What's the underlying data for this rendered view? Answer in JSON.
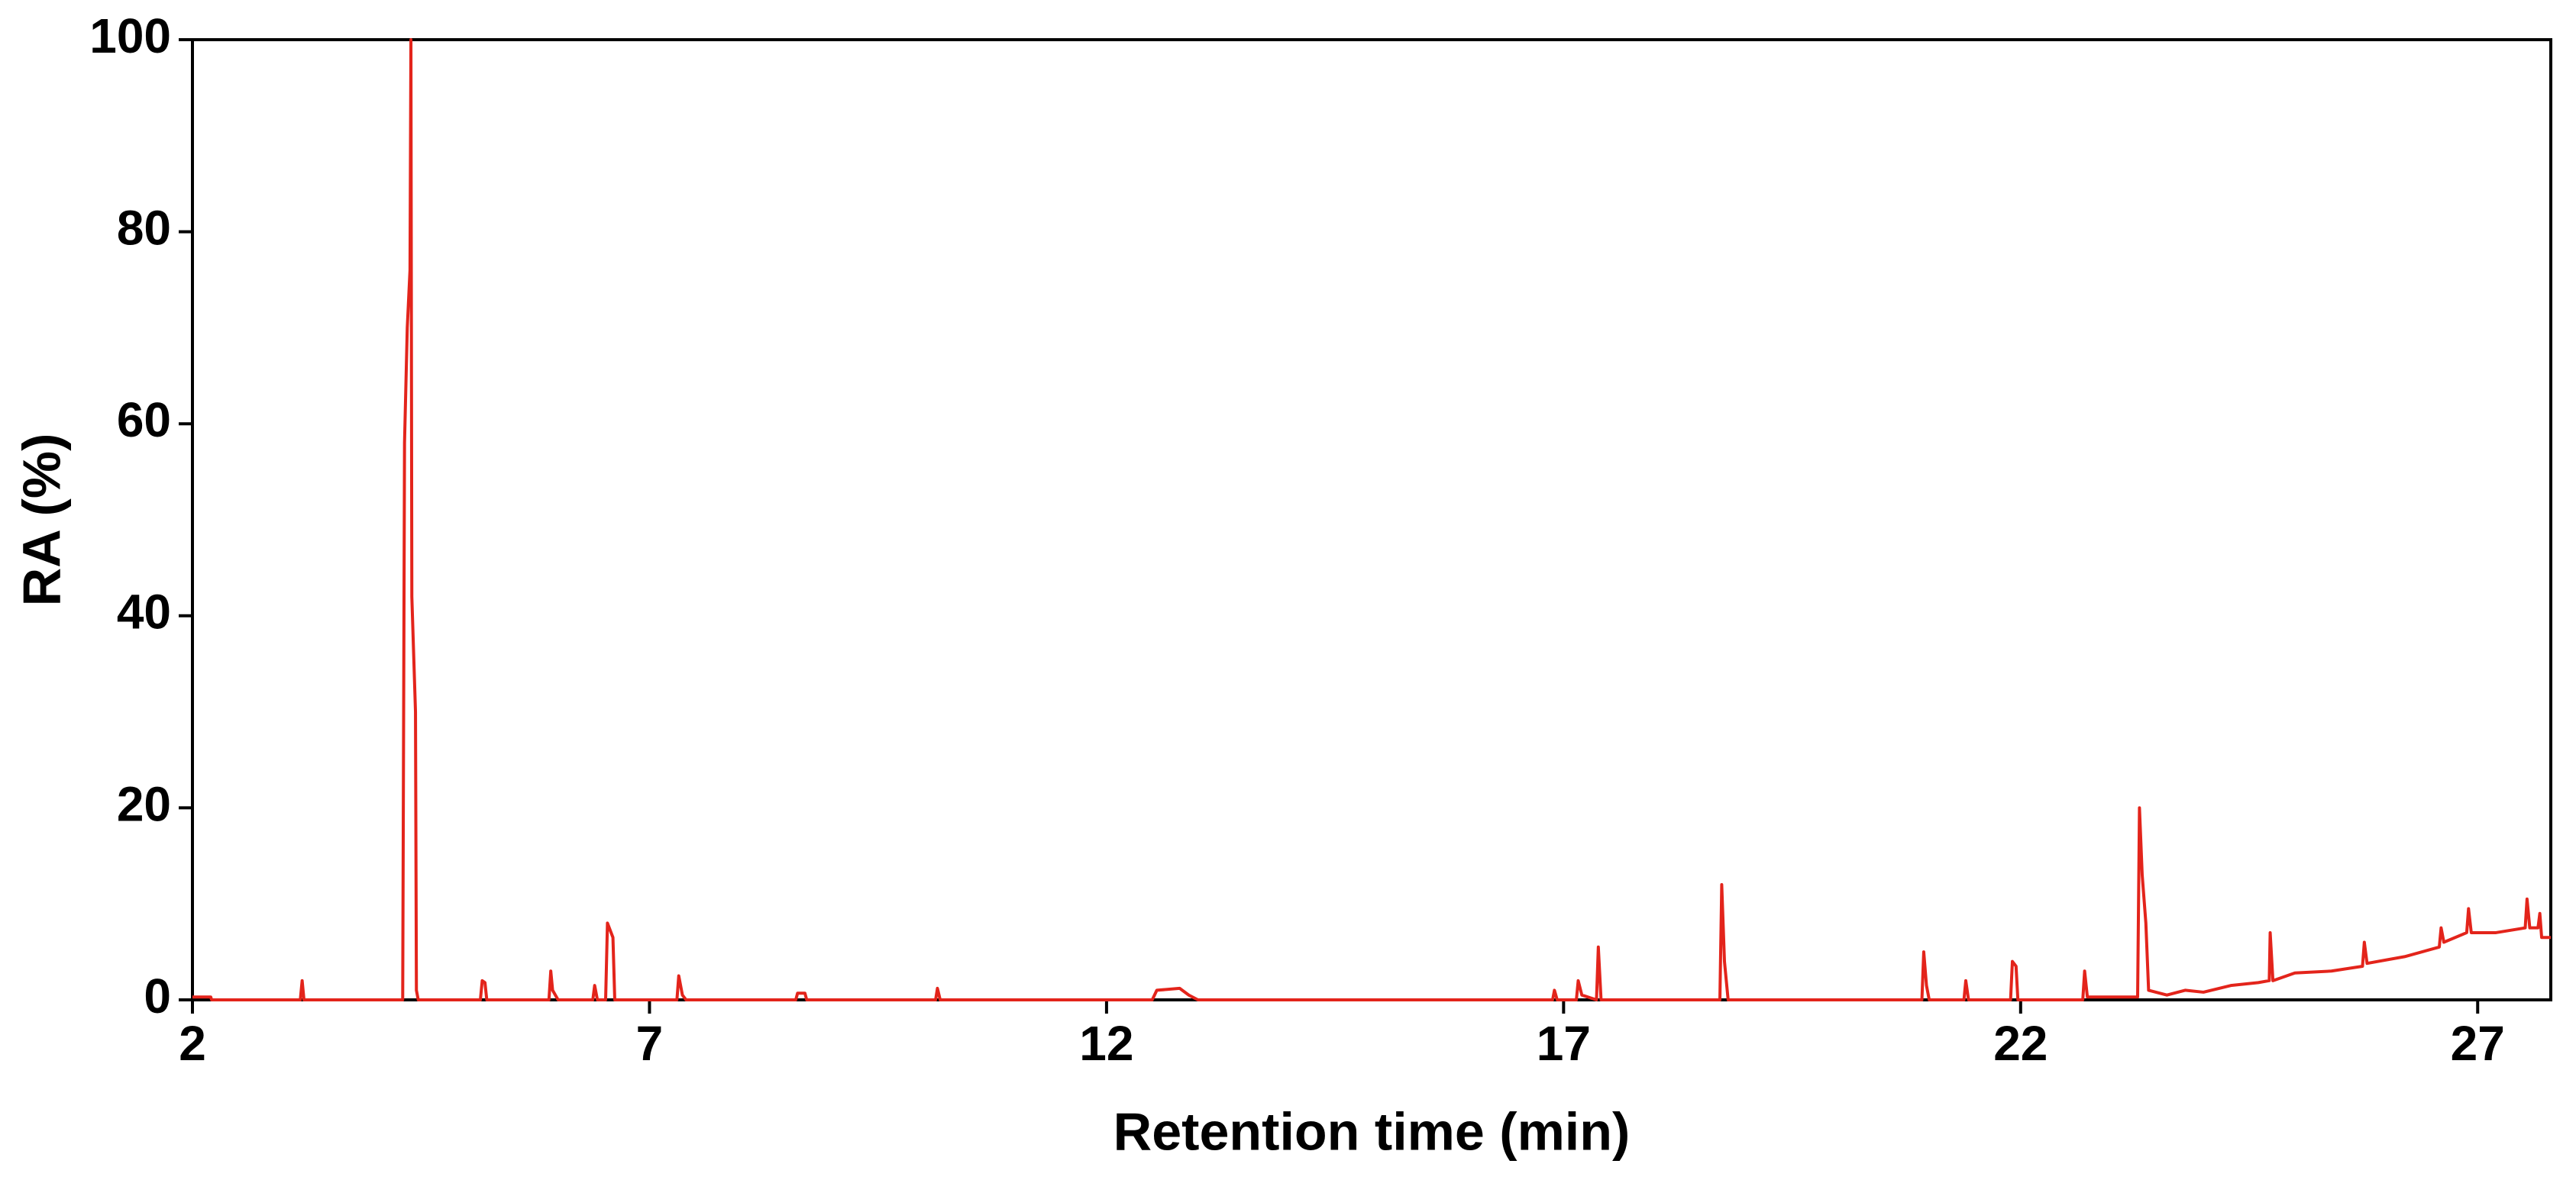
{
  "chart_data": {
    "type": "line",
    "x_label": "Retention time (min)",
    "y_label": "RA (%)",
    "xlim": [
      2,
      27.8
    ],
    "ylim": [
      0,
      100
    ],
    "xticks": [
      2,
      7,
      12,
      17,
      22,
      27
    ],
    "yticks": [
      0,
      20,
      40,
      60,
      80,
      100
    ],
    "grid": false,
    "series": [
      {
        "color": "#e3241b",
        "x": [
          2.0,
          2.2,
          2.21,
          3.18,
          3.2,
          3.22,
          4.3,
          4.32,
          4.35,
          4.38,
          4.39,
          4.4,
          4.44,
          4.45,
          4.47,
          5.15,
          5.17,
          5.2,
          5.22,
          5.9,
          5.92,
          5.94,
          6.0,
          6.38,
          6.4,
          6.43,
          6.52,
          6.54,
          6.6,
          6.62,
          7.3,
          7.32,
          7.36,
          7.4,
          8.6,
          8.62,
          8.7,
          8.72,
          10.13,
          10.15,
          10.18,
          12.5,
          12.55,
          12.8,
          12.9,
          13.0,
          16.88,
          16.9,
          16.93,
          17.14,
          17.16,
          17.2,
          17.36,
          17.38,
          17.41,
          18.71,
          18.73,
          18.76,
          18.8,
          20.92,
          20.94,
          20.97,
          21.0,
          21.38,
          21.4,
          21.43,
          21.89,
          21.91,
          21.95,
          21.97,
          22.68,
          22.7,
          22.73,
          23.28,
          23.3,
          23.33,
          23.37,
          23.4,
          23.6,
          23.8,
          24.0,
          24.3,
          24.6,
          24.72,
          24.73,
          24.76,
          25.0,
          25.4,
          25.74,
          25.76,
          25.79,
          26.2,
          26.58,
          26.6,
          26.63,
          26.88,
          26.9,
          26.93,
          27.2,
          27.52,
          27.54,
          27.57,
          27.66,
          27.68,
          27.7,
          27.8
        ],
        "values": [
          0.3,
          0.3,
          0,
          0,
          2,
          0,
          0,
          58,
          70,
          76,
          100,
          42,
          30,
          1,
          0,
          0,
          2,
          1.8,
          0,
          0,
          3,
          1,
          0,
          0,
          1.5,
          0,
          0,
          8,
          6.5,
          0,
          0,
          2.5,
          0.5,
          0,
          0,
          0.7,
          0.7,
          0,
          0,
          1.2,
          0,
          0,
          1,
          1.2,
          0.5,
          0,
          0,
          1,
          0,
          0,
          2,
          0.5,
          0,
          5.5,
          0,
          0,
          12,
          4,
          0,
          0,
          5,
          1.5,
          0,
          0,
          2,
          0,
          0,
          4,
          3.5,
          0,
          0,
          3,
          0.3,
          0.3,
          20,
          13,
          8,
          1,
          0.5,
          1,
          0.8,
          1.5,
          1.8,
          2,
          7,
          2,
          2.8,
          3,
          3.5,
          6,
          3.8,
          4.5,
          5.5,
          7.5,
          6,
          7,
          9.5,
          7,
          7,
          7.5,
          10.5,
          7.5,
          7.5,
          9,
          6.5,
          6.5
        ]
      }
    ]
  }
}
